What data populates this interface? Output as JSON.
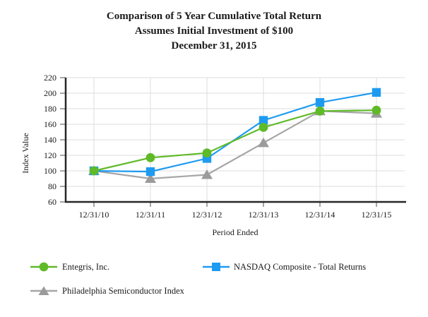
{
  "title": {
    "line1": "Comparison of 5 Year Cumulative Total Return",
    "line2": "Assumes Initial Investment of $100",
    "line3": "December 31, 2015"
  },
  "chart_data": {
    "type": "line",
    "x_categories": [
      "12/31/10",
      "12/31/11",
      "12/31/12",
      "12/31/13",
      "12/31/14",
      "12/31/15"
    ],
    "series": [
      {
        "name": "Philadelphia Semiconductor Index",
        "marker": "triangle",
        "color": "#A6A6A6",
        "marker_color": "#9B9B9B",
        "values": [
          100,
          90,
          95,
          136,
          177,
          174
        ]
      },
      {
        "name": "NASDAQ Composite - Total Returns",
        "marker": "square",
        "color": "#1E9BF0",
        "marker_color": "#1E9BF0",
        "values": [
          100,
          99,
          116,
          165,
          188,
          201
        ]
      },
      {
        "name": "Entegris, Inc.",
        "marker": "circle",
        "color": "#5FBA28",
        "marker_color": "#5FBA28",
        "values": [
          100,
          117,
          123,
          156,
          177,
          178
        ]
      }
    ],
    "xlabel": "Period Ended",
    "ylabel": "Index Value",
    "ylim": [
      60,
      220
    ],
    "ytick_step": 20,
    "grid": true,
    "legend_position": "bottom"
  },
  "colors": {
    "grid": "#DCDCDC",
    "axis": "#262626",
    "tick": "#4D4D4D",
    "background": "#FFFFFF"
  }
}
